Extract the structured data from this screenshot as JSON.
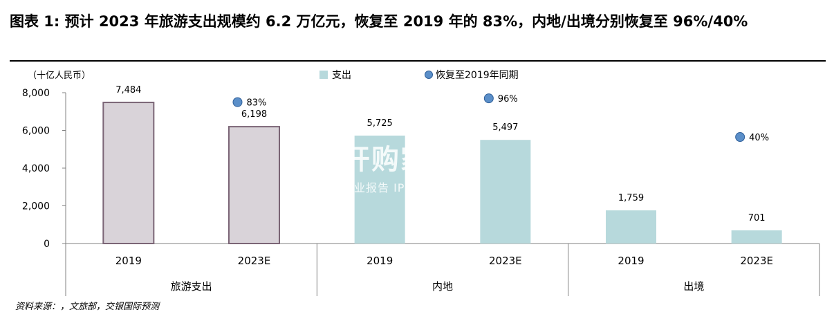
{
  "header": {
    "title": "图表 1: 预计 2023 年旅游支出规模约 6.2 万亿元，恢复至 2019 年的 83%，内地/出境分别恢复至 96%/40%"
  },
  "source": "资料来源：，文旅部，交银国际预测",
  "watermark": {
    "brand": "开购家",
    "sub": "行业报告 IPOIPO.CN"
  },
  "colors": {
    "travel_bar": "#d9d3d9",
    "travel_edge": "#7b6576",
    "domestic_bar": "#b7d9dc",
    "marker": "#5b8fc9"
  },
  "chart_data": {
    "type": "bar",
    "unit_label": "（十亿人民币）",
    "ylim": [
      0,
      8000
    ],
    "yticks": [
      "0",
      "2,000",
      "4,000",
      "6,000",
      "8,000"
    ],
    "ytick_values": [
      0,
      2000,
      4000,
      6000,
      8000
    ],
    "legend": {
      "bar": "支出",
      "marker": "恢复至2019年同期",
      "placement": "top-center"
    },
    "groups": [
      {
        "name": "旅游支出",
        "bars": [
          {
            "category": "2019",
            "value": 7484,
            "label": "7,484"
          },
          {
            "category": "2023E",
            "value": 6198,
            "label": "6,198",
            "recovery": "83%",
            "recovery_y": 7500
          }
        ]
      },
      {
        "name": "内地",
        "bars": [
          {
            "category": "2019",
            "value": 5725,
            "label": "5,725"
          },
          {
            "category": "2023E",
            "value": 5497,
            "label": "5,497",
            "recovery": "96%",
            "recovery_y": 7700
          }
        ]
      },
      {
        "name": "出境",
        "bars": [
          {
            "category": "2019",
            "value": 1759,
            "label": "1,759"
          },
          {
            "category": "2023E",
            "value": 701,
            "label": "701",
            "recovery": "40%",
            "recovery_y": 5650
          }
        ]
      }
    ]
  }
}
